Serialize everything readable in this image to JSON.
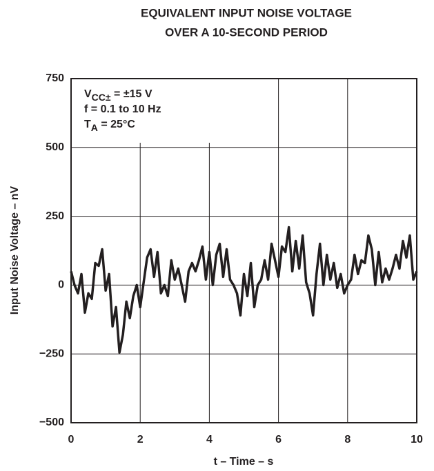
{
  "chart_data": {
    "type": "line",
    "title": [
      "EQUIVALENT INPUT NOISE VOLTAGE",
      "OVER A 10-SECOND PERIOD"
    ],
    "x_label": "t – Time – s",
    "y_label": "Input Noise Voltage – nV",
    "annotations": [
      {
        "text": "V",
        "sub": "CC±",
        "rest": " = ±15 V"
      },
      {
        "text": "f = 0.1 to 10 Hz"
      },
      {
        "text": "T",
        "sub": "A",
        "rest": " = 25°C"
      }
    ],
    "x": [
      0,
      0.1,
      0.2,
      0.3,
      0.4,
      0.5,
      0.6,
      0.7,
      0.8,
      0.9,
      1,
      1.1,
      1.2,
      1.3,
      1.4,
      1.5,
      1.6,
      1.7,
      1.8,
      1.9,
      2,
      2.1,
      2.2,
      2.3,
      2.4,
      2.5,
      2.6,
      2.7,
      2.8,
      2.9,
      3,
      3.1,
      3.2,
      3.3,
      3.4,
      3.5,
      3.6,
      3.7,
      3.8,
      3.9,
      4,
      4.1,
      4.2,
      4.3,
      4.4,
      4.5,
      4.6,
      4.7,
      4.8,
      4.9,
      5,
      5.1,
      5.2,
      5.3,
      5.4,
      5.5,
      5.6,
      5.7,
      5.8,
      5.9,
      6,
      6.1,
      6.2,
      6.3,
      6.4,
      6.5,
      6.6,
      6.7,
      6.8,
      6.9,
      7,
      7.1,
      7.2,
      7.3,
      7.4,
      7.5,
      7.6,
      7.7,
      7.8,
      7.9,
      8,
      8.1,
      8.2,
      8.3,
      8.4,
      8.5,
      8.6,
      8.7,
      8.8,
      8.9,
      9,
      9.1,
      9.2,
      9.3,
      9.4,
      9.5,
      9.6,
      9.7,
      9.8,
      9.9,
      10
    ],
    "series": [
      {
        "color": "#231f20",
        "values": [
          50,
          0,
          -30,
          40,
          -100,
          -30,
          -50,
          80,
          70,
          130,
          -20,
          40,
          -150,
          -80,
          -245,
          -180,
          -60,
          -120,
          -40,
          0,
          -80,
          10,
          100,
          130,
          30,
          120,
          -30,
          0,
          -40,
          90,
          20,
          60,
          0,
          -60,
          50,
          80,
          50,
          90,
          140,
          20,
          120,
          0,
          110,
          150,
          30,
          130,
          20,
          0,
          -30,
          -110,
          40,
          -40,
          80,
          -80,
          0,
          20,
          90,
          20,
          150,
          90,
          30,
          140,
          120,
          210,
          50,
          160,
          60,
          180,
          10,
          -30,
          -110,
          40,
          150,
          0,
          110,
          20,
          80,
          -10,
          40,
          -30,
          0,
          20,
          110,
          40,
          90,
          80,
          180,
          130,
          0,
          120,
          10,
          60,
          20,
          60,
          110,
          60,
          160,
          100,
          180,
          20,
          50
        ]
      }
    ],
    "xlim": [
      0,
      10
    ],
    "xticks": [
      0,
      2,
      4,
      6,
      8,
      10
    ],
    "ylim": [
      -500,
      750
    ],
    "yticks": [
      {
        "value": -500,
        "label": "−500"
      },
      {
        "value": -250,
        "label": "−250"
      },
      0,
      250,
      500,
      750
    ],
    "grid": true
  }
}
